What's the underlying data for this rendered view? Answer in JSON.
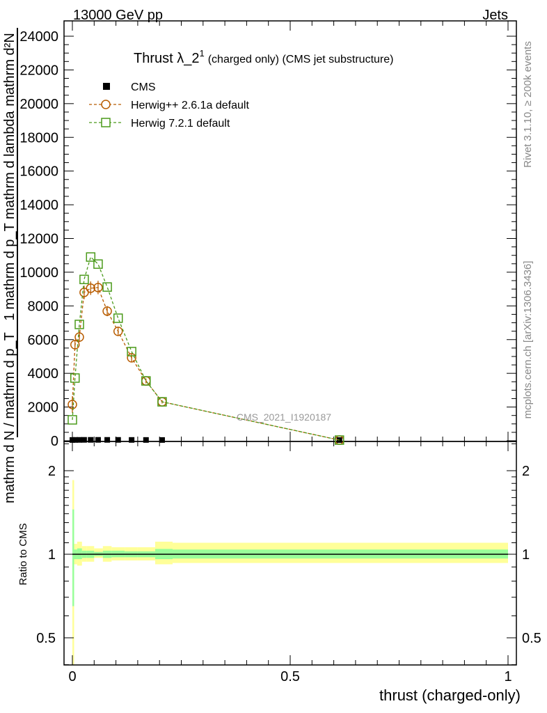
{
  "header": {
    "left": "13000 GeV pp",
    "right": "Jets"
  },
  "side": {
    "rivet": "Rivet 3.1.10, ≥ 200k events",
    "mcplots": "mcplots.cern.ch [arXiv:1306.3436]"
  },
  "watermark": "CMS_2021_I1920187",
  "chart_data": [
    {
      "type": "line",
      "title": "Thrust λ_2",
      "title_sup": "1",
      "title_suffix": "(charged only) (CMS jet substructure)",
      "xlabel": "thrust (charged-only)",
      "ylabel": {
        "left_top": "mathrm d²N",
        "left_bottom": "1",
        "right_top": "mathrm d p_T mathrm d lambda",
        "right_bottom": "mathrm d N / mathrm d p_T"
      },
      "xlim": [
        -0.02,
        1.02
      ],
      "ylim": [
        0,
        24500
      ],
      "yticks": [
        0,
        2000,
        4000,
        6000,
        8000,
        10000,
        12000,
        14000,
        16000,
        18000,
        20000,
        22000,
        24000
      ],
      "ytick_labels": [
        "0",
        "2000",
        "4000",
        "6000",
        "8000",
        "10000",
        "12000",
        "14000",
        "16000",
        "18000",
        "20000",
        "22000",
        "24000"
      ],
      "legend_position": "top-left",
      "x": [
        0.0,
        0.006,
        0.016,
        0.027,
        0.042,
        0.059,
        0.08,
        0.105,
        0.136,
        0.169,
        0.206,
        0.613
      ],
      "series": [
        {
          "name": "CMS",
          "color": "#000000",
          "marker": "filled-square",
          "values": [
            5,
            8,
            10,
            12,
            12,
            12,
            11,
            10,
            8,
            6,
            4,
            1
          ]
        },
        {
          "name": "Herwig++ 2.6.1a default",
          "color": "#b85c00",
          "marker": "open-circle",
          "values": [
            2150,
            5700,
            6150,
            8800,
            9050,
            9090,
            7690,
            6490,
            4920,
            3550,
            2310,
            40
          ],
          "errors": [
            500,
            300,
            300,
            400,
            400,
            400,
            300,
            250,
            250,
            150,
            100,
            10
          ]
        },
        {
          "name": "Herwig 7.2.1 default",
          "color": "#4a9a1a",
          "marker": "open-square",
          "values": [
            1240,
            3720,
            6900,
            9570,
            10900,
            10480,
            9120,
            7270,
            5290,
            3550,
            2310,
            40
          ]
        }
      ]
    },
    {
      "type": "area",
      "ylabel": "Ratio to CMS",
      "yscale": "log",
      "ylim": [
        0.4,
        2.5
      ],
      "yticks": [
        0.5,
        1,
        2
      ],
      "ytick_labels": [
        "0.5",
        "1",
        "2"
      ],
      "xticks": [
        0,
        0.5,
        1
      ],
      "xtick_labels": [
        "0",
        "0.5",
        "1"
      ],
      "bin_edges": [
        0,
        0.004,
        0.011,
        0.022,
        0.033,
        0.05,
        0.07,
        0.09,
        0.12,
        0.15,
        0.19,
        0.23,
        1.0
      ],
      "band_total": {
        "color": "#ffff99",
        "lo": [
          0.33,
          0.92,
          0.91,
          0.94,
          0.94,
          0.97,
          0.94,
          0.95,
          0.95,
          0.95,
          0.92,
          0.93
        ],
        "hi": [
          1.85,
          1.09,
          1.11,
          1.07,
          1.07,
          1.05,
          1.07,
          1.06,
          1.06,
          1.06,
          1.11,
          1.1
        ]
      },
      "band_stat": {
        "color": "#99ff99",
        "lo": [
          0.65,
          0.96,
          0.96,
          0.97,
          0.97,
          0.985,
          0.97,
          0.975,
          0.975,
          0.975,
          0.96,
          0.965
        ],
        "hi": [
          1.45,
          1.04,
          1.05,
          1.03,
          1.03,
          1.02,
          1.03,
          1.03,
          1.025,
          1.025,
          1.045,
          1.04
        ]
      }
    }
  ]
}
